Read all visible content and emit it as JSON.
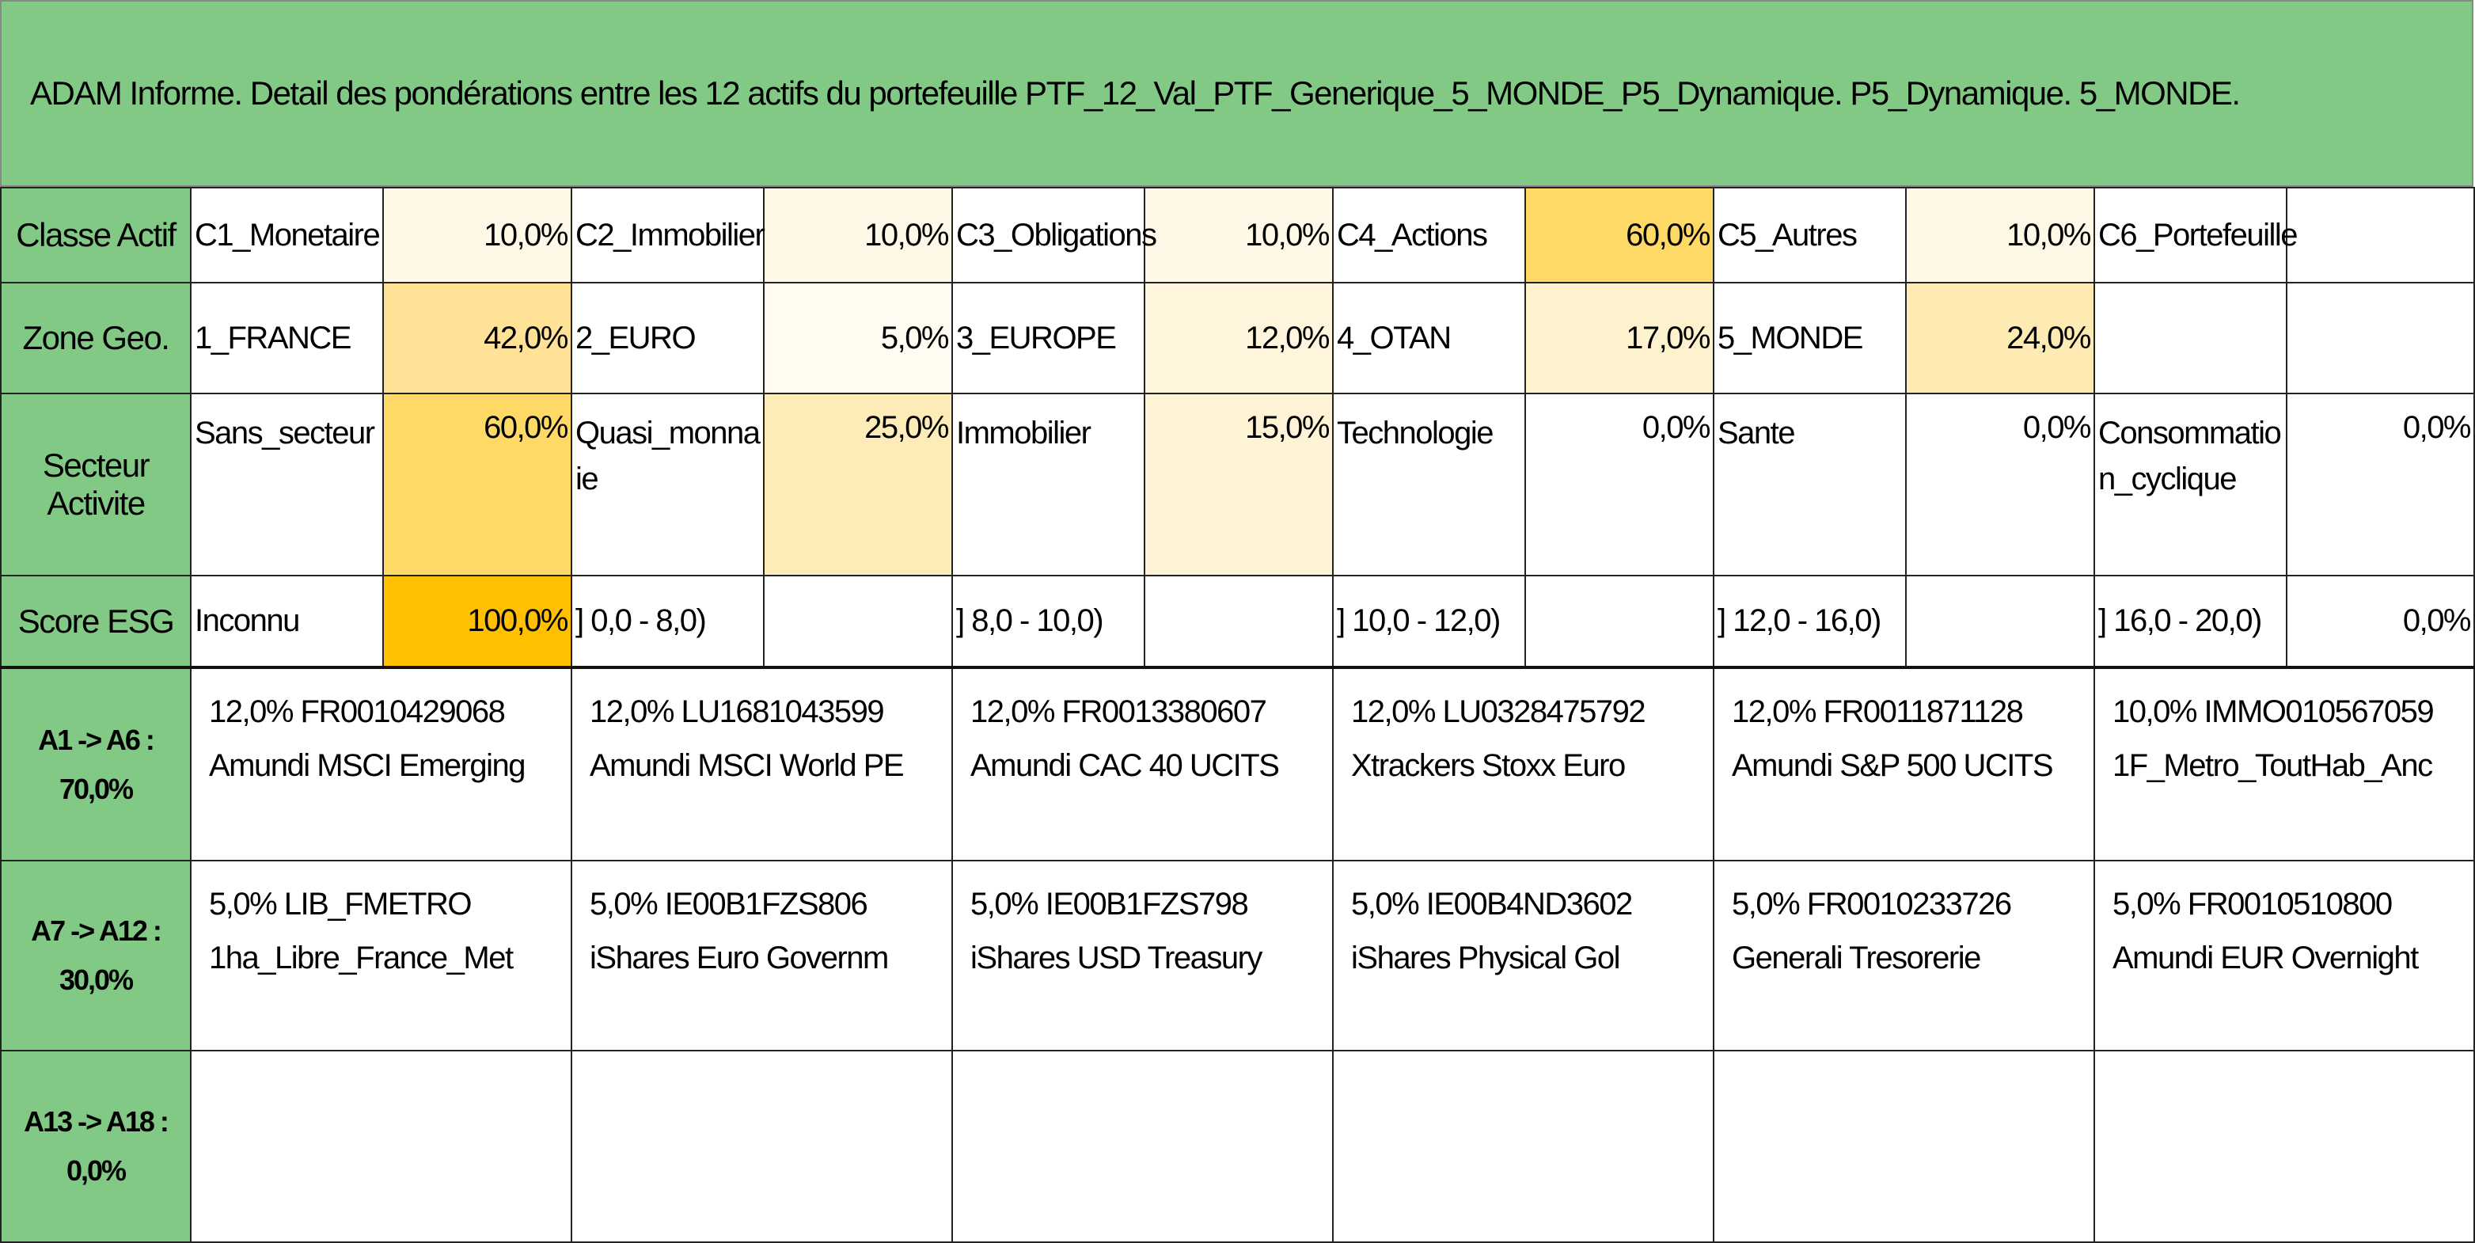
{
  "title": "ADAM Informe. Detail des pondérations entre les 12 actifs du portefeuille PTF_12_Val_PTF_Generique_5_MONDE_P5_Dynamique. P5_Dynamique. 5_MONDE.",
  "rows": [
    {
      "label": "Classe Actif",
      "cells": [
        {
          "name": "C1_Monetaire",
          "value": "10,0%",
          "color": "#fef8e6"
        },
        {
          "name": "C2_Immobilier",
          "value": "10,0%",
          "color": "#fef8e6"
        },
        {
          "name": "C3_Obligations",
          "value": "10,0%",
          "color": "#fef8e6"
        },
        {
          "name": "C4_Actions",
          "value": "60,0%",
          "color": "#ffd966"
        },
        {
          "name": "C5_Autres",
          "value": "10,0%",
          "color": "#fef8e6"
        },
        {
          "name": "C6_Portefeuille"
        }
      ]
    },
    {
      "label": "Zone Geo.",
      "cells": [
        {
          "name": "1_FRANCE",
          "value": "42,0%",
          "color": "#ffe296"
        },
        {
          "name": "2_EURO",
          "value": "5,0%",
          "color": "#fffbf1"
        },
        {
          "name": "3_EUROPE",
          "value": "12,0%",
          "color": "#fef5dc"
        },
        {
          "name": "4_OTAN",
          "value": "17,0%",
          "color": "#fef1cd"
        },
        {
          "name": "5_MONDE",
          "value": "24,0%",
          "color": "#feebb4"
        }
      ]
    },
    {
      "label": "Secteur Activite",
      "cells": [
        {
          "name": "Sans_secteur",
          "value": "60,0%",
          "color": "#ffd966"
        },
        {
          "name": "Quasi_monnaie",
          "value": "25,0%",
          "color": "#feecb8"
        },
        {
          "name": "Immobilier",
          "value": "15,0%",
          "color": "#fef3d4"
        },
        {
          "name": "Technologie",
          "value": "0,0%",
          "color": "#ffffff"
        },
        {
          "name": "Sante",
          "value": "0,0%",
          "color": "#ffffff"
        },
        {
          "name": "Consommation_cyclique",
          "value": "0,0%",
          "color": "#ffffff"
        }
      ]
    },
    {
      "label": "Score ESG",
      "cells": [
        {
          "name": "Inconnu",
          "value": "100,0%",
          "color": "#ffc000"
        },
        {
          "name": "] 0,0 - 8,0)"
        },
        {
          "name": "] 8,0 - 10,0)"
        },
        {
          "name": "] 10,0 - 12,0)"
        },
        {
          "name": "] 12,0 - 16,0)"
        },
        {
          "name": "] 16,0 - 20,0)",
          "value": "0,0%",
          "color": "#ffffff"
        }
      ]
    }
  ],
  "assets": [
    {
      "label": "A1 -> A6 :",
      "total": "70,0%",
      "items": [
        {
          "line1": "12,0% FR0010429068",
          "line2": "Amundi MSCI Emerging"
        },
        {
          "line1": "12,0% LU1681043599",
          "line2": "Amundi MSCI World PE"
        },
        {
          "line1": "12,0% FR0013380607",
          "line2": "Amundi CAC 40 UCITS"
        },
        {
          "line1": "12,0% LU0328475792",
          "line2": "Xtrackers Stoxx Euro"
        },
        {
          "line1": "12,0% FR0011871128",
          "line2": "Amundi S&P 500 UCITS"
        },
        {
          "line1": "10,0% IMMO010567059",
          "line2": "1F_Metro_ToutHab_Anc"
        }
      ]
    },
    {
      "label": "A7 -> A12 :",
      "total": "30,0%",
      "items": [
        {
          "line1": "5,0% LIB_FMETRO",
          "line2": "1ha_Libre_France_Met"
        },
        {
          "line1": "5,0% IE00B1FZS806",
          "line2": "iShares Euro Governm"
        },
        {
          "line1": "5,0% IE00B1FZS798",
          "line2": "iShares USD Treasury"
        },
        {
          "line1": "5,0% IE00B4ND3602",
          "line2": "iShares Physical Gol"
        },
        {
          "line1": "5,0% FR0010233726",
          "line2": "Generali Tresorerie"
        },
        {
          "line1": "5,0% FR0010510800",
          "line2": "Amundi EUR Overnight"
        }
      ]
    },
    {
      "label": "A13 -> A18 :",
      "total": "0,0%"
    }
  ]
}
